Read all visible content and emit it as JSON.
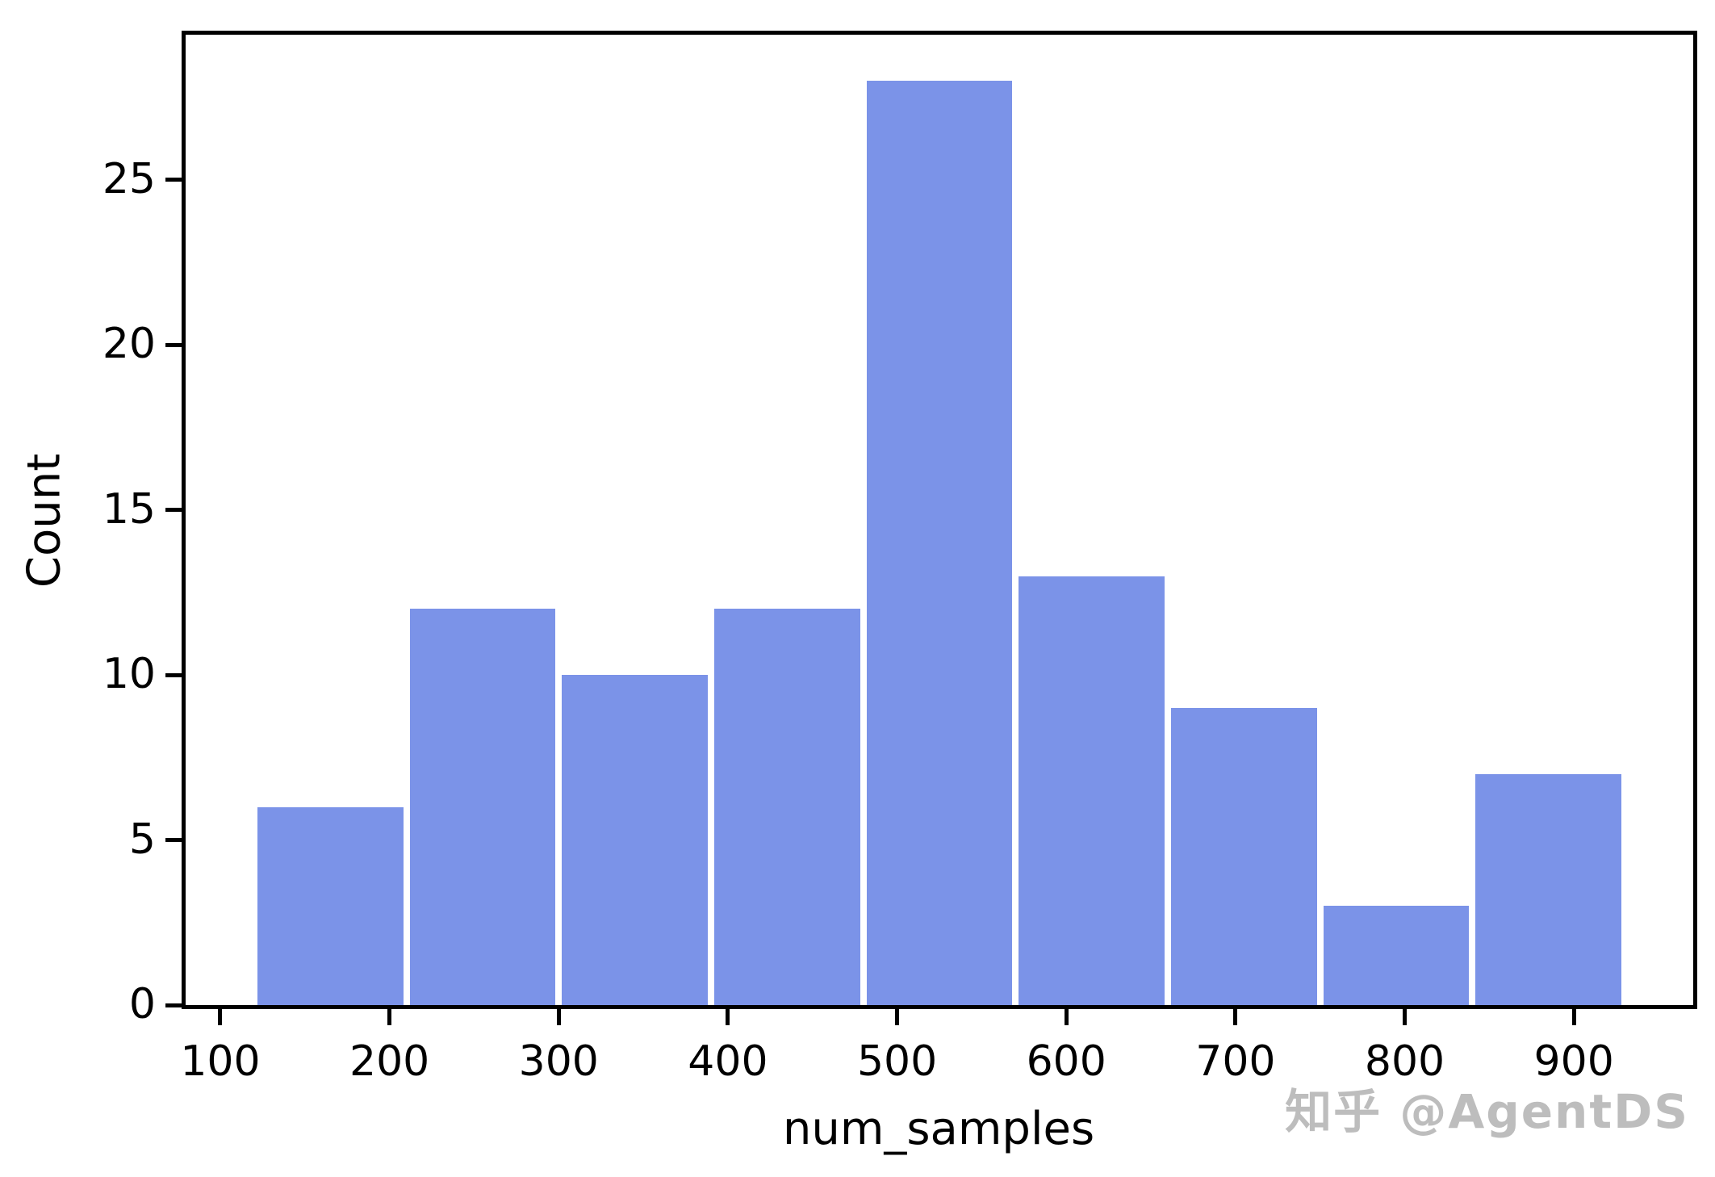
{
  "figure": {
    "watermark": "知乎 @AgentDS"
  },
  "chart_data": {
    "type": "bar",
    "subtype": "histogram",
    "title": "",
    "xlabel": "num_samples",
    "ylabel": "Count",
    "bin_edges": [
      120,
      210,
      300,
      390,
      480,
      570,
      660,
      750,
      840,
      930
    ],
    "counts": [
      6,
      12,
      10,
      12,
      28,
      13,
      9,
      3,
      7
    ],
    "categories": [
      "120-210",
      "210-300",
      "300-390",
      "390-480",
      "480-570",
      "570-660",
      "660-750",
      "750-840",
      "840-930"
    ],
    "xticks": [
      100,
      200,
      300,
      400,
      500,
      600,
      700,
      800,
      900
    ],
    "yticks": [
      0,
      5,
      10,
      15,
      20,
      25
    ],
    "xlim": [
      79.5,
      970.5
    ],
    "ylim": [
      0,
      29.4
    ],
    "grid": false,
    "legend_position": "none",
    "bar_color": "#7b93e8",
    "bar_edge_color": "#ffffff",
    "axis_color": "#000000",
    "background_color": "#ffffff",
    "watermark_color": "#bdbdbd"
  }
}
